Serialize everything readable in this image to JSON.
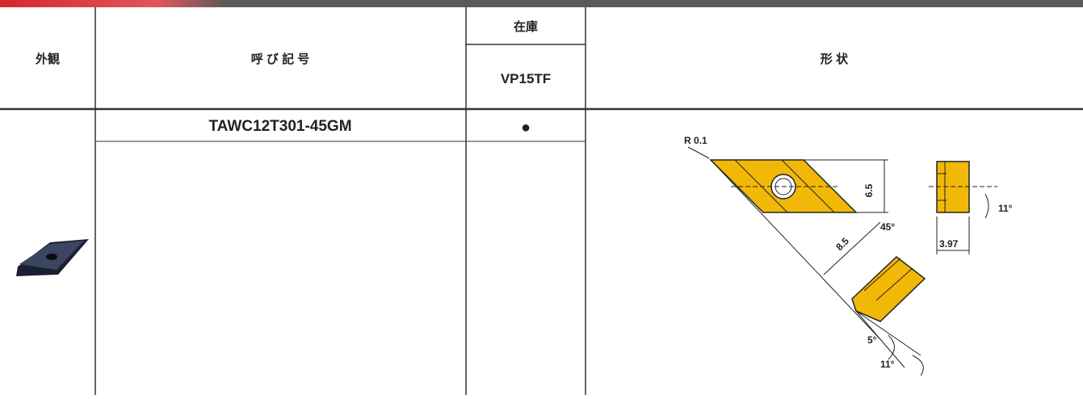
{
  "table": {
    "headers": {
      "appearance": "外観",
      "designation": "呼 び 記 号",
      "stock": "在庫",
      "grade": "VP15TF",
      "shape": "形 状"
    },
    "rows": [
      {
        "designation": "TAWC12T301-45GM",
        "stock": "●"
      }
    ]
  },
  "drawing": {
    "labels": {
      "radius": "R 0.1",
      "height": "6.5",
      "angle_corner": "45°",
      "length": "8.5",
      "side_angle": "11°",
      "thickness": "3.97",
      "relief_angle": "5°",
      "clearance_angle": "11°"
    }
  }
}
